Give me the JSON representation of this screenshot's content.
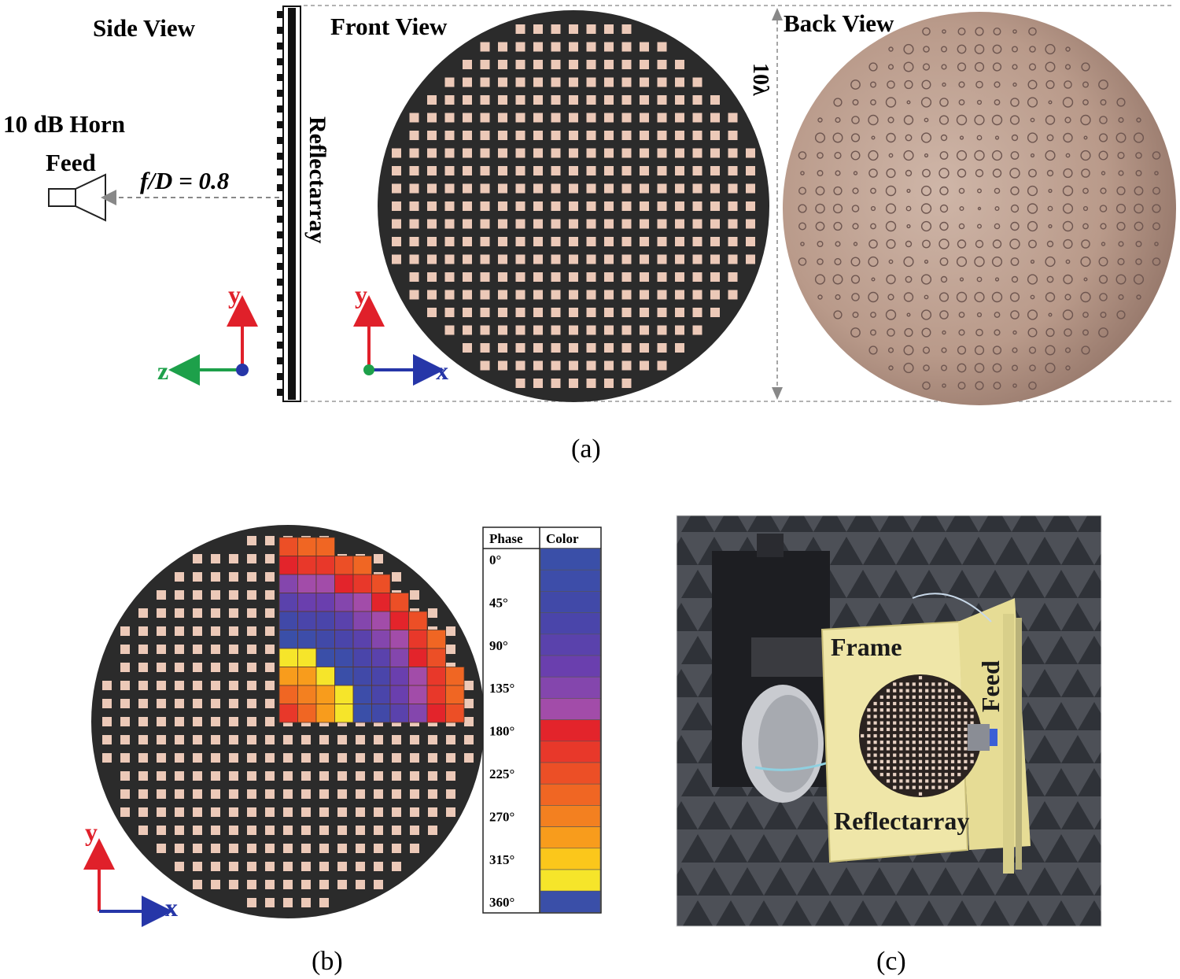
{
  "panel_a": {
    "side_view_label": "Side View",
    "front_view_label": "Front View",
    "back_view_label": "Back View",
    "feed_line1": "10 dB Horn",
    "feed_line2": "Feed",
    "focal_ratio": "f/D = 0.8",
    "reflectarray_label": "Reflectarray",
    "dimension_label": "10λ",
    "side_axes": {
      "y": "y",
      "z": "z"
    },
    "front_axes": {
      "y": "y",
      "x": "x"
    },
    "caption": "(a)"
  },
  "panel_b": {
    "axes": {
      "y": "y",
      "x": "x"
    },
    "legend_header_phase": "Phase",
    "legend_header_color": "Color",
    "legend_rows": [
      {
        "phase": "0°",
        "color": "#3a4fa8"
      },
      {
        "phase": "",
        "color": "#3d4da9"
      },
      {
        "phase": "45°",
        "color": "#4149a8"
      },
      {
        "phase": "",
        "color": "#4a45aa"
      },
      {
        "phase": "90°",
        "color": "#5a42ac"
      },
      {
        "phase": "",
        "color": "#6a3fae"
      },
      {
        "phase": "135°",
        "color": "#8446ad"
      },
      {
        "phase": "",
        "color": "#a24ca9"
      },
      {
        "phase": "180°",
        "color": "#e3242b"
      },
      {
        "phase": "",
        "color": "#e8382a"
      },
      {
        "phase": "225°",
        "color": "#ec4f26"
      },
      {
        "phase": "",
        "color": "#f06623"
      },
      {
        "phase": "270°",
        "color": "#f38020"
      },
      {
        "phase": "",
        "color": "#f89c1c"
      },
      {
        "phase": "315°",
        "color": "#fbc71b"
      },
      {
        "phase": "",
        "color": "#f6e52a"
      },
      {
        "phase": "360°",
        "color": "#3a4fa8"
      }
    ],
    "caption": "(b)"
  },
  "panel_c": {
    "frame_label": "Frame",
    "feed_label": "Feed",
    "reflectarray_label": "Reflectarray",
    "caption": "(c)"
  }
}
